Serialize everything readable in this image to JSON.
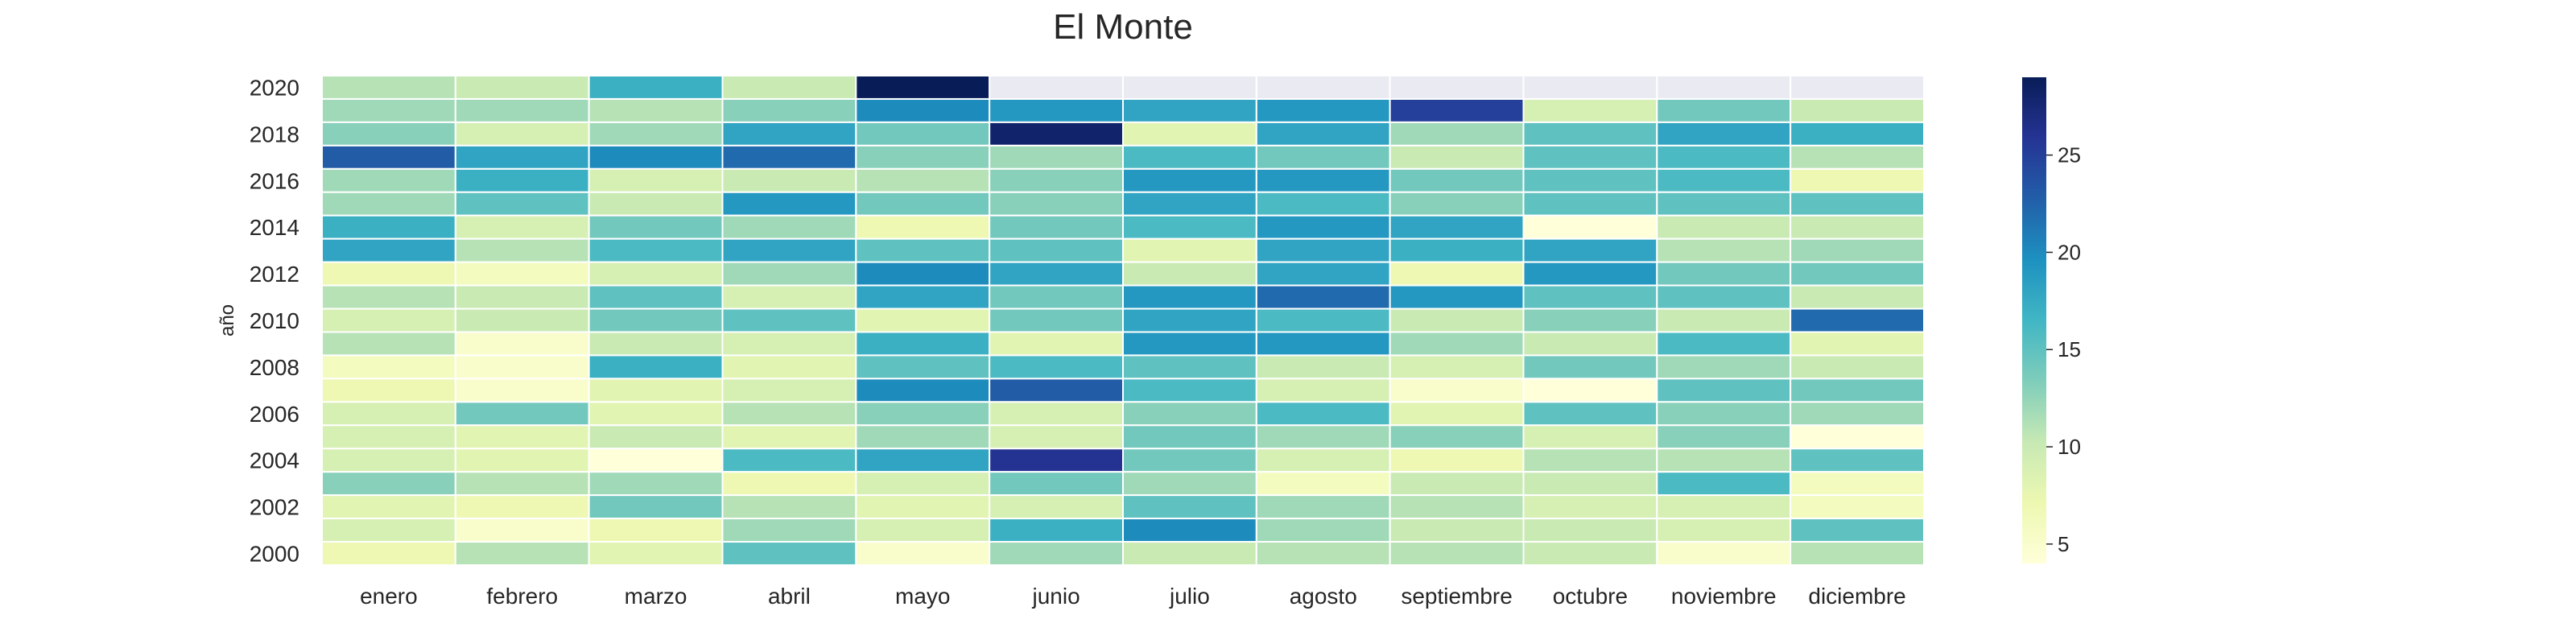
{
  "chart_data": {
    "type": "heatmap",
    "title": "El Monte",
    "xlabel": "",
    "ylabel": "año",
    "x_categories": [
      "enero",
      "febrero",
      "marzo",
      "abril",
      "mayo",
      "junio",
      "julio",
      "agosto",
      "septiembre",
      "octubre",
      "noviembre",
      "diciembre"
    ],
    "y_categories": [
      "2020",
      "2019",
      "2018",
      "2017",
      "2016",
      "2015",
      "2014",
      "2013",
      "2012",
      "2011",
      "2010",
      "2009",
      "2008",
      "2007",
      "2006",
      "2005",
      "2004",
      "2003",
      "2002",
      "2001",
      "2000"
    ],
    "y_tick_labels": [
      "2020",
      "2018",
      "2016",
      "2014",
      "2012",
      "2010",
      "2008",
      "2006",
      "2004",
      "2002",
      "2000"
    ],
    "values": [
      [
        11,
        10,
        17,
        10,
        29,
        null,
        null,
        null,
        null,
        null,
        null,
        null
      ],
      [
        12,
        12,
        11,
        13,
        20,
        19,
        18,
        19,
        25,
        9,
        14,
        10
      ],
      [
        13,
        9,
        12,
        18,
        14,
        28,
        8,
        18,
        12,
        15,
        18,
        17
      ],
      [
        23,
        18,
        20,
        22,
        13,
        12,
        16,
        14,
        10,
        15,
        16,
        11
      ],
      [
        12,
        17,
        9,
        10,
        11,
        13,
        19,
        19,
        14,
        15,
        16,
        7
      ],
      [
        12,
        15,
        10,
        19,
        14,
        13,
        18,
        16,
        13,
        15,
        15,
        15
      ],
      [
        17,
        9,
        14,
        12,
        7,
        14,
        16,
        19,
        18,
        4,
        10,
        10
      ],
      [
        18,
        11,
        16,
        18,
        15,
        15,
        8,
        18,
        17,
        18,
        11,
        12
      ],
      [
        7,
        6,
        9,
        12,
        20,
        18,
        10,
        18,
        7,
        19,
        14,
        14
      ],
      [
        11,
        10,
        15,
        9,
        18,
        14,
        19,
        22,
        19,
        15,
        15,
        10
      ],
      [
        9,
        10,
        14,
        15,
        8,
        14,
        18,
        16,
        10,
        13,
        10,
        22
      ],
      [
        11,
        5,
        10,
        9,
        17,
        8,
        19,
        19,
        12,
        10,
        16,
        8
      ],
      [
        6,
        5,
        17,
        8,
        15,
        16,
        15,
        10,
        9,
        14,
        12,
        10
      ],
      [
        7,
        5,
        8,
        9,
        20,
        23,
        16,
        9,
        5,
        4,
        15,
        14
      ],
      [
        9,
        14,
        8,
        11,
        13,
        9,
        13,
        16,
        8,
        15,
        13,
        12
      ],
      [
        9,
        8,
        10,
        8,
        12,
        9,
        14,
        12,
        13,
        9,
        13,
        4
      ],
      [
        9,
        8,
        4,
        16,
        18,
        26,
        14,
        9,
        7,
        11,
        11,
        15
      ],
      [
        13,
        11,
        12,
        7,
        9,
        14,
        12,
        6,
        10,
        10,
        16,
        6
      ],
      [
        8,
        7,
        14,
        11,
        8,
        9,
        15,
        12,
        11,
        9,
        9,
        6
      ],
      [
        9,
        5,
        7,
        12,
        9,
        17,
        20,
        12,
        10,
        10,
        9,
        15
      ],
      [
        7,
        11,
        8,
        15,
        5,
        12,
        10,
        11,
        11,
        10,
        5,
        11
      ]
    ],
    "missing_color": "#eaeaf2",
    "colorbar": {
      "colormap": "YlGnBu",
      "vmin": 4,
      "vmax": 29,
      "ticks": [
        5,
        10,
        15,
        20,
        25
      ]
    },
    "colorscale": [
      "#ffffd9",
      "#edf8b1",
      "#c7e9b4",
      "#7fcdbb",
      "#41b6c4",
      "#1d91c0",
      "#225ea8",
      "#253494",
      "#081d58"
    ]
  }
}
